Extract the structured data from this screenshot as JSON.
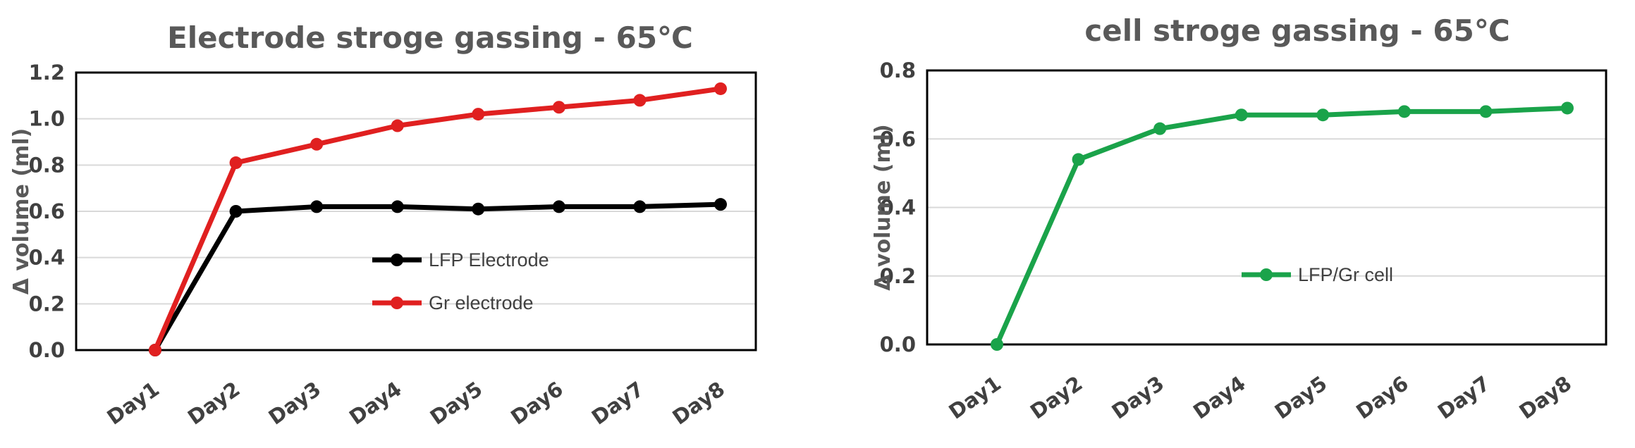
{
  "chart_data": [
    {
      "type": "line",
      "title": "Electrode stroge gassing - 65℃",
      "xlabel": "",
      "ylabel": "Δ volume (ml)",
      "categories": [
        "Day1",
        "Day2",
        "Day3",
        "Day4",
        "Day5",
        "Day6",
        "Day7",
        "Day8"
      ],
      "ylim": [
        0,
        1.2
      ],
      "yticks": [
        "0.0",
        "0.2",
        "0.4",
        "0.6",
        "0.8",
        "1.0",
        "1.2"
      ],
      "grid": true,
      "legend": "center-right",
      "series": [
        {
          "name": "LFP Electrode",
          "color": "#000000",
          "values": [
            0.0,
            0.6,
            0.62,
            0.62,
            0.61,
            0.62,
            0.62,
            0.63
          ]
        },
        {
          "name": "Gr  electrode",
          "color": "#e02020",
          "values": [
            0.0,
            0.81,
            0.89,
            0.97,
            1.02,
            1.05,
            1.08,
            1.13
          ]
        }
      ]
    },
    {
      "type": "line",
      "title": "cell stroge gassing - 65℃",
      "xlabel": "",
      "ylabel": "Δ volume (ml)",
      "categories": [
        "Day1",
        "Day2",
        "Day3",
        "Day4",
        "Day5",
        "Day6",
        "Day7",
        "Day8"
      ],
      "ylim": [
        0,
        0.8
      ],
      "yticks": [
        "0.0",
        "0.2",
        "0.4",
        "0.6",
        "0.8"
      ],
      "grid": true,
      "legend": "center-right",
      "series": [
        {
          "name": "LFP/Gr cell",
          "color": "#1aa34a",
          "values": [
            0.0,
            0.54,
            0.63,
            0.67,
            0.67,
            0.68,
            0.68,
            0.69
          ]
        }
      ]
    }
  ]
}
